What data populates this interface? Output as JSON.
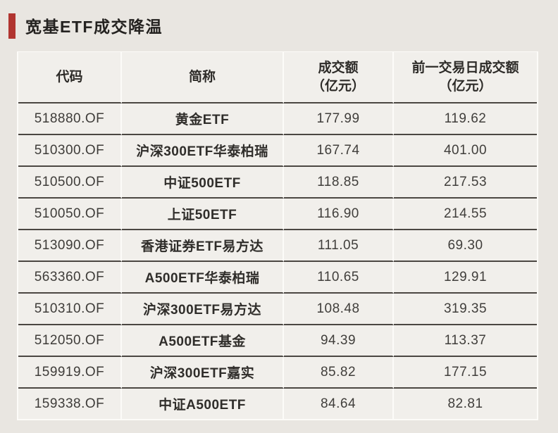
{
  "page": {
    "background": "#e9e6e1",
    "accent_color": "#b13530"
  },
  "chart_data": {
    "type": "table",
    "title": "宽基ETF成交降温",
    "columns": [
      {
        "label": "代码",
        "sub": ""
      },
      {
        "label": "简称",
        "sub": ""
      },
      {
        "label": "成交额",
        "sub": "（亿元）"
      },
      {
        "label": "前一交易日成交额",
        "sub": "（亿元）"
      }
    ],
    "rows": [
      {
        "code": "518880.OF",
        "name": "黄金ETF",
        "turnover": "177.99",
        "prev_turnover": "119.62"
      },
      {
        "code": "510300.OF",
        "name": "沪深300ETF华泰柏瑞",
        "turnover": "167.74",
        "prev_turnover": "401.00"
      },
      {
        "code": "510500.OF",
        "name": "中证500ETF",
        "turnover": "118.85",
        "prev_turnover": "217.53"
      },
      {
        "code": "510050.OF",
        "name": "上证50ETF",
        "turnover": "116.90",
        "prev_turnover": "214.55"
      },
      {
        "code": "513090.OF",
        "name": "香港证券ETF易方达",
        "turnover": "111.05",
        "prev_turnover": "69.30"
      },
      {
        "code": "563360.OF",
        "name": "A500ETF华泰柏瑞",
        "turnover": "110.65",
        "prev_turnover": "129.91"
      },
      {
        "code": "510310.OF",
        "name": "沪深300ETF易方达",
        "turnover": "108.48",
        "prev_turnover": "319.35"
      },
      {
        "code": "512050.OF",
        "name": "A500ETF基金",
        "turnover": "94.39",
        "prev_turnover": "113.37"
      },
      {
        "code": "159919.OF",
        "name": "沪深300ETF嘉实",
        "turnover": "85.82",
        "prev_turnover": "177.15"
      },
      {
        "code": "159338.OF",
        "name": "中证A500ETF",
        "turnover": "84.64",
        "prev_turnover": "82.81"
      }
    ]
  }
}
